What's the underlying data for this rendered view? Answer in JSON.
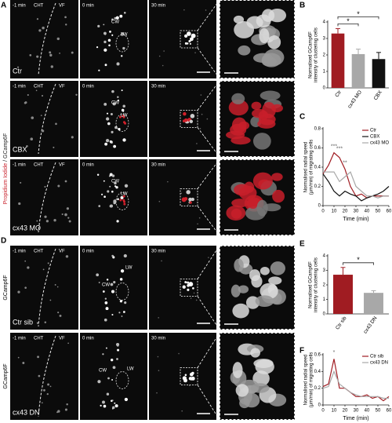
{
  "panel_a": {
    "letter": "A",
    "side_label": [
      "Propidium Iodide",
      "/ GCamp6F"
    ],
    "rows": [
      {
        "labels": [
          "-1 min",
          "CHT",
          "VF",
          "0 min",
          "CW",
          "LW",
          "30 min"
        ],
        "condition": "Ctr"
      },
      {
        "labels": [
          "-1 min",
          "CHT",
          "VF",
          "0 min",
          "CW",
          "LW",
          "30 min"
        ],
        "condition": "CBX"
      },
      {
        "labels": [
          "-1 min",
          "CHT",
          "VF",
          "0 min",
          "CW",
          "LW",
          "30 min"
        ],
        "condition": "cx43 MO"
      }
    ]
  },
  "panel_d": {
    "letter": "D",
    "rows": [
      {
        "side_label": "GCamp6F",
        "labels": [
          "-1 min",
          "CHT",
          "VF",
          "0 min",
          "LW",
          "CW",
          "30 min"
        ],
        "condition": "Ctr sib"
      },
      {
        "side_label": "GCamp6F",
        "labels": [
          "-1 min",
          "CHT",
          "VF",
          "0 min",
          "CW",
          "LW",
          "30 min"
        ],
        "condition": "cx43 DN"
      }
    ]
  },
  "chart_data": [
    {
      "type": "bar",
      "panel": "B",
      "ylabel": [
        "Normalised GCamp6F",
        "intensity of clustering cells"
      ],
      "categories": [
        "Ctr",
        "cx43 MO",
        "CBX"
      ],
      "values": [
        3.3,
        2.05,
        1.75
      ],
      "errors": [
        0.3,
        0.3,
        0.4
      ],
      "colors": [
        "#a01c22",
        "#a8a8a8",
        "#111111"
      ],
      "ylim": [
        0,
        4
      ],
      "yticks": [
        0,
        1,
        2,
        3,
        4
      ],
      "annotations": [
        "*",
        "*"
      ]
    },
    {
      "type": "line",
      "panel": "C",
      "ylabel": [
        "Normalised radial speed",
        "(µm/min) of migrating cells"
      ],
      "xlabel": "Time (min)",
      "x": [
        0,
        5,
        10,
        15,
        20,
        25,
        30,
        35,
        40,
        45,
        50,
        55,
        60
      ],
      "series": [
        {
          "name": "Ctr",
          "color": "#a01c22",
          "values": [
            0.33,
            0.42,
            0.55,
            0.5,
            0.38,
            0.2,
            0.1,
            0.12,
            0.08,
            0.1,
            0.1,
            0.1,
            0.1
          ]
        },
        {
          "name": "CBX",
          "color": "#111111",
          "values": [
            0.33,
            0.25,
            0.15,
            0.1,
            0.15,
            0.12,
            0.1,
            0.05,
            0.08,
            0.1,
            0.12,
            0.15,
            0.2
          ]
        },
        {
          "name": "cx43 MO",
          "color": "#a8a8a8",
          "values": [
            0.35,
            0.35,
            0.35,
            0.25,
            0.3,
            0.35,
            0.2,
            0.15,
            0.1,
            0.1,
            0.08,
            0.1,
            0.1
          ]
        }
      ],
      "xlim": [
        0,
        60
      ],
      "xticks": [
        0,
        10,
        20,
        30,
        40,
        50,
        60
      ],
      "ylim": [
        0,
        0.8
      ],
      "yticks": [
        0,
        0.2,
        0.4,
        0.6,
        0.8
      ],
      "annotations": [
        "***",
        "***",
        "**"
      ]
    },
    {
      "type": "bar",
      "panel": "E",
      "ylabel": [
        "Normalised GCamp6F",
        "intensity of clustering cells"
      ],
      "categories": [
        "Ctr sib",
        "cx43 DN"
      ],
      "values": [
        2.7,
        1.45
      ],
      "errors": [
        0.5,
        0.15
      ],
      "colors": [
        "#a01c22",
        "#a8a8a8"
      ],
      "ylim": [
        0,
        4
      ],
      "yticks": [
        0,
        1,
        2,
        3,
        4
      ],
      "annotations": [
        "*"
      ]
    },
    {
      "type": "line",
      "panel": "F",
      "ylabel": [
        "Normalised radial speed",
        "(µm/min) of migrating cells"
      ],
      "xlabel": "Time (min)",
      "x": [
        0,
        5,
        10,
        15,
        20,
        25,
        30,
        35,
        40,
        45,
        50,
        55,
        60
      ],
      "series": [
        {
          "name": "Ctr sib",
          "color": "#a01c22",
          "values": [
            0.22,
            0.25,
            0.55,
            0.2,
            0.2,
            0.15,
            0.1,
            0.1,
            0.12,
            0.08,
            0.1,
            0.05,
            0.1
          ]
        },
        {
          "name": "cx43 DN",
          "color": "#a8a8a8",
          "values": [
            0.2,
            0.22,
            0.4,
            0.25,
            0.2,
            0.15,
            0.12,
            0.1,
            0.1,
            0.1,
            0.1,
            0.08,
            0.08
          ]
        }
      ],
      "xlim": [
        0,
        60
      ],
      "xticks": [
        0,
        10,
        20,
        30,
        40,
        50,
        60
      ],
      "ylim": [
        0,
        0.6
      ],
      "yticks": [
        0,
        0.2,
        0.4,
        0.6
      ],
      "annotations": [
        "*"
      ]
    }
  ]
}
